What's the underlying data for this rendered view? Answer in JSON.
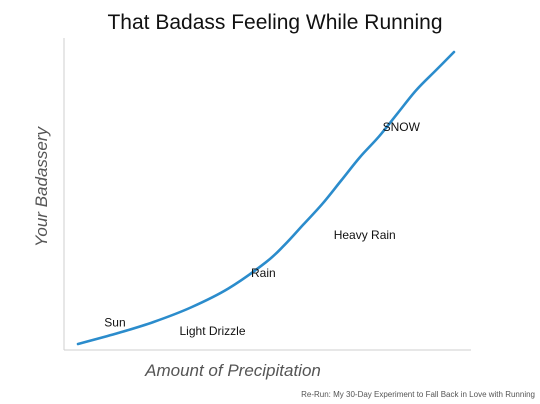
{
  "chart_data": {
    "type": "line",
    "title": "That Badass Feeling While Running",
    "xlabel": "Amount of Precipitation",
    "ylabel": "Your Badassery",
    "grid": false,
    "legend": "none",
    "xlim": [
      0,
      100
    ],
    "ylim": [
      0,
      100
    ],
    "series": [
      {
        "color": "#2b8ccc",
        "x": [
          0,
          10,
          20,
          30,
          40,
          50,
          55,
          60,
          65,
          70,
          75,
          80,
          85,
          90,
          95,
          100
        ],
        "y": [
          0,
          3.5,
          7.5,
          12.5,
          19,
          28,
          34,
          41,
          48,
          56,
          64,
          71,
          79,
          87,
          93.5,
          100
        ]
      }
    ],
    "annotations": [
      {
        "text": "Sun",
        "x": 7,
        "y": 6
      },
      {
        "text": "Light Drizzle",
        "x": 27,
        "y": 3
      },
      {
        "text": "Rain",
        "x": 46,
        "y": 23
      },
      {
        "text": "Heavy Rain",
        "x": 68,
        "y": 36
      },
      {
        "text": "SNOW",
        "x": 81,
        "y": 73
      }
    ]
  },
  "caption": "Re-Run: My 30-Day Experiment to Fall Back in Love with Running",
  "colors": {
    "axis": "#cfcfcf",
    "line": "#2b8ccc",
    "text": "#111111",
    "label": "#555555"
  }
}
